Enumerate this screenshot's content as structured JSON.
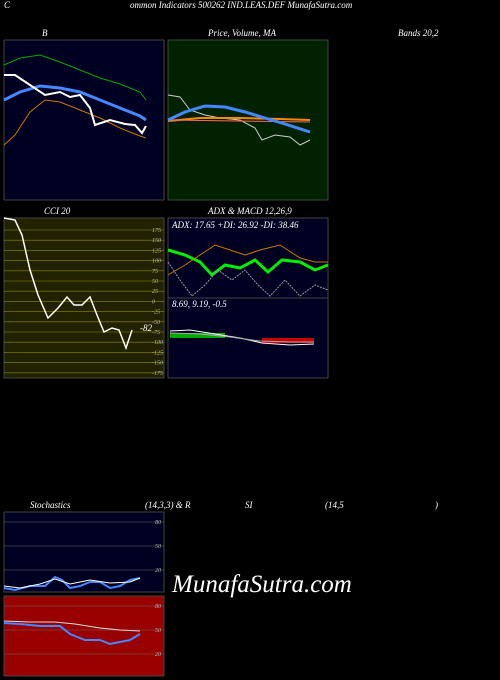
{
  "header": {
    "first": "C",
    "rest": "ommon  Indicators 500262  IND.LEAS.DEF MunafaSutra.com"
  },
  "panels": {
    "bands_left": "B",
    "price": "Price, Volume, MA",
    "bands_right": "Bands 20,2",
    "cci": {
      "title": "CCI 20",
      "ticks": [
        "175",
        "150",
        "125",
        "100",
        "75",
        "50",
        "25",
        "0",
        "-25",
        "-50",
        "-75",
        "-100",
        "-125",
        "-150",
        "-175"
      ],
      "current": "-82"
    },
    "adx": {
      "title": "ADX  & MACD 12,26,9",
      "values": "ADX: 17.65  +DI: 26.92  -DI: 38.46"
    },
    "macd": {
      "values": "8.69,  9.19,  -0.5"
    },
    "stoch": {
      "title": "Stochastics",
      "params": "(14,3,3) & R",
      "ticks": [
        "80",
        "50",
        "20"
      ]
    },
    "rsi": {
      "title": "SI",
      "params": "(14,5",
      "close": ")",
      "ticks": [
        "80",
        "50",
        "20"
      ]
    }
  },
  "watermark": "MunafaSutra.com"
}
